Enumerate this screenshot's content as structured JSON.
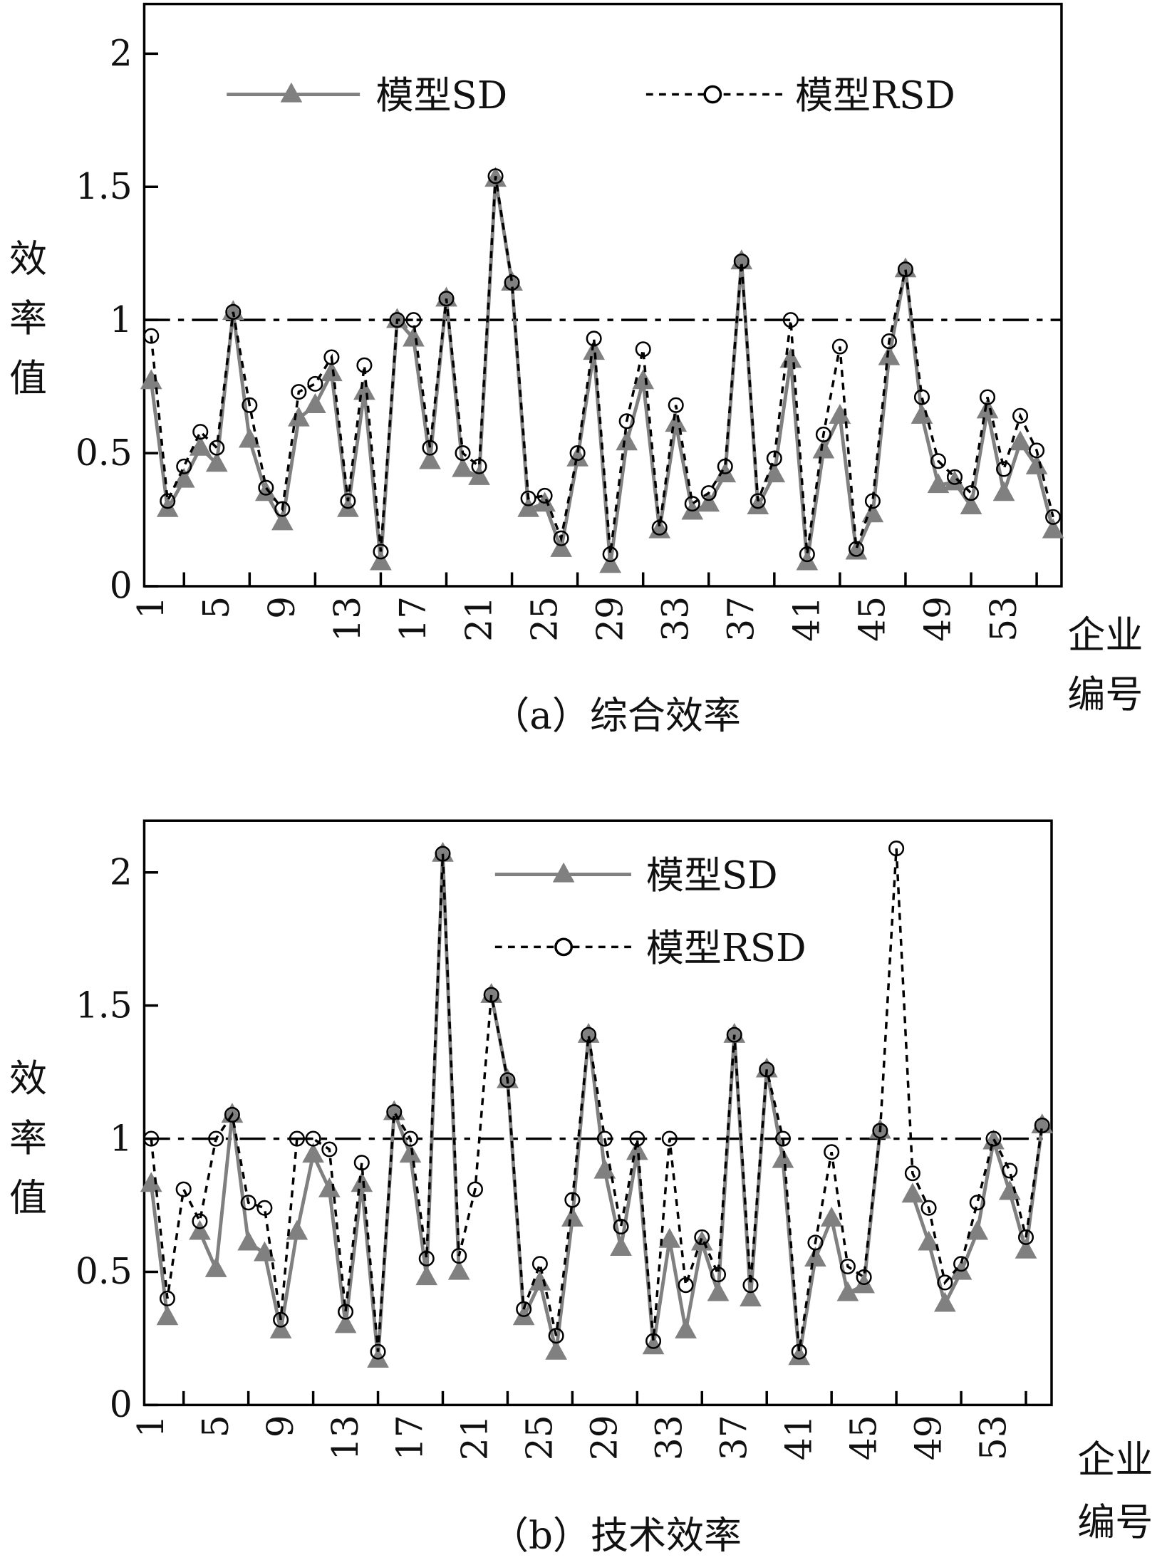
{
  "chart_data": [
    {
      "type": "line",
      "title": "（a）综合效率",
      "xlabel": [
        "企业",
        "编号"
      ],
      "ylabel": "效率值",
      "ylim": [
        0,
        2
      ],
      "yticks": [
        "0",
        "0.5",
        "1",
        "1.5",
        "2"
      ],
      "xticks": [
        "1",
        "5",
        "9",
        "13",
        "17",
        "21",
        "25",
        "29",
        "33",
        "37",
        "41",
        "45",
        "49",
        "53"
      ],
      "reference_line": 1,
      "legend_placement": "top",
      "x": [
        1,
        2,
        3,
        4,
        5,
        6,
        7,
        8,
        9,
        10,
        11,
        12,
        13,
        14,
        15,
        16,
        17,
        18,
        19,
        20,
        21,
        22,
        23,
        24,
        25,
        26,
        27,
        28,
        29,
        30,
        31,
        32,
        33,
        34,
        35,
        36,
        37,
        38,
        39,
        40,
        41,
        42,
        43,
        44,
        45,
        46,
        47,
        48,
        49,
        50,
        51,
        52,
        53,
        54,
        55,
        56
      ],
      "series": [
        {
          "name": "模型SD",
          "color": "#808080",
          "style": "solid-triangle",
          "values": [
            0.77,
            0.29,
            0.4,
            0.52,
            0.46,
            1.03,
            0.55,
            0.35,
            0.24,
            0.63,
            0.68,
            0.8,
            0.29,
            0.73,
            0.09,
            1.0,
            0.93,
            0.47,
            1.08,
            0.44,
            0.41,
            1.53,
            1.14,
            0.29,
            0.31,
            0.14,
            0.48,
            0.88,
            0.08,
            0.54,
            0.77,
            0.21,
            0.61,
            0.28,
            0.31,
            0.42,
            1.22,
            0.3,
            0.42,
            0.85,
            0.09,
            0.51,
            0.64,
            0.13,
            0.27,
            0.86,
            1.19,
            0.64,
            0.38,
            0.39,
            0.3,
            0.66,
            0.35,
            0.54,
            0.45,
            0.21
          ]
        },
        {
          "name": "模型RSD",
          "color": "#000000",
          "style": "dashed-circle",
          "values": [
            0.94,
            0.32,
            0.45,
            0.58,
            0.52,
            1.03,
            0.68,
            0.37,
            0.29,
            0.73,
            0.76,
            0.86,
            0.32,
            0.83,
            0.13,
            1.0,
            1.0,
            0.52,
            1.08,
            0.5,
            0.45,
            1.54,
            1.14,
            0.33,
            0.34,
            0.18,
            0.5,
            0.93,
            0.12,
            0.62,
            0.89,
            0.22,
            0.68,
            0.31,
            0.35,
            0.45,
            1.22,
            0.32,
            0.48,
            1.0,
            0.12,
            0.57,
            0.9,
            0.14,
            0.32,
            0.92,
            1.19,
            0.71,
            0.47,
            0.41,
            0.35,
            0.71,
            0.44,
            0.64,
            0.51,
            0.26
          ]
        }
      ]
    },
    {
      "type": "line",
      "title": "（b）技术效率",
      "xlabel": [
        "企业",
        "编号"
      ],
      "ylabel": "效率值",
      "ylim": [
        0,
        2.2
      ],
      "yticks": [
        "0",
        "0.5",
        "1",
        "1.5",
        "2"
      ],
      "xticks": [
        "1",
        "5",
        "9",
        "13",
        "17",
        "21",
        "25",
        "29",
        "33",
        "37",
        "41",
        "45",
        "49",
        "53"
      ],
      "reference_line": 1,
      "legend_placement": "top-center",
      "x": [
        1,
        2,
        3,
        4,
        5,
        6,
        7,
        8,
        9,
        10,
        11,
        12,
        13,
        14,
        15,
        16,
        17,
        18,
        19,
        20,
        21,
        22,
        23,
        24,
        25,
        26,
        27,
        28,
        29,
        30,
        31,
        32,
        33,
        34,
        35,
        36,
        37,
        38,
        39,
        40,
        41,
        42,
        43,
        44,
        45,
        46,
        47,
        48,
        49,
        50,
        51,
        52,
        53,
        54,
        55,
        56
      ],
      "series": [
        {
          "name": "模型SD",
          "color": "#808080",
          "style": "solid-triangle",
          "values": [
            0.83,
            0.33,
            null,
            0.65,
            0.51,
            1.09,
            0.61,
            0.57,
            0.28,
            0.65,
            0.94,
            0.81,
            0.3,
            0.83,
            0.17,
            1.1,
            0.94,
            0.48,
            2.07,
            0.5,
            null,
            1.54,
            1.22,
            0.33,
            0.46,
            0.2,
            0.7,
            1.39,
            0.88,
            0.59,
            0.95,
            0.22,
            0.62,
            0.28,
            0.61,
            0.42,
            1.39,
            0.4,
            1.26,
            0.92,
            0.18,
            0.55,
            0.7,
            0.42,
            0.45,
            1.03,
            null,
            0.79,
            0.61,
            0.38,
            0.5,
            0.65,
            0.99,
            0.8,
            0.58,
            1.05
          ]
        },
        {
          "name": "模型RSD",
          "color": "#000000",
          "style": "dashed-circle",
          "values": [
            1.0,
            0.4,
            0.81,
            0.69,
            1.0,
            1.09,
            0.76,
            0.74,
            0.32,
            1.0,
            1.0,
            0.96,
            0.35,
            0.91,
            0.2,
            1.1,
            1.0,
            0.55,
            2.07,
            0.56,
            0.81,
            1.54,
            1.22,
            0.36,
            0.53,
            0.26,
            0.77,
            1.39,
            1.0,
            0.67,
            1.0,
            0.24,
            1.0,
            0.45,
            0.63,
            0.49,
            1.39,
            0.45,
            1.26,
            1.0,
            0.2,
            0.61,
            0.95,
            0.52,
            0.48,
            1.03,
            2.09,
            0.87,
            0.74,
            0.46,
            0.53,
            0.76,
            1.0,
            0.88,
            0.63,
            1.05
          ]
        }
      ]
    }
  ]
}
